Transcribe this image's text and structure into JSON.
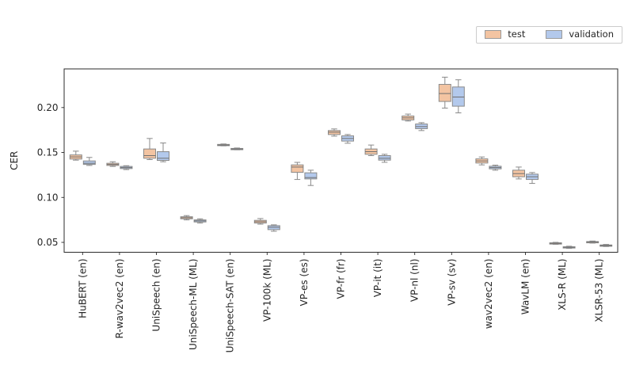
{
  "figure": {
    "background_color": "#ffffff",
    "axis_color": "#2b2b2b",
    "tick_color": "#262626"
  },
  "legend": {
    "items": [
      {
        "label": "test",
        "color": "#f3c4a2"
      },
      {
        "label": "validation",
        "color": "#b3c9ec"
      }
    ]
  },
  "axes": {
    "ylabel": "CER",
    "ytick_labels": [
      "0.05",
      "0.10",
      "0.15",
      "0.20"
    ]
  },
  "chart_data": {
    "type": "boxplot",
    "title": "",
    "xlabel": "",
    "ylabel": "CER",
    "ylim": [
      0.039,
      0.243
    ],
    "yticks": [
      0.05,
      0.1,
      0.15,
      0.2
    ],
    "grid": false,
    "legend_position": "upper right, outside plot",
    "box_values_order": [
      "whisker_low",
      "q1",
      "median",
      "q3",
      "whisker_high"
    ],
    "categories": [
      "HuBERT (en)",
      "R-wav2vec2 (en)",
      "UniSpeech (en)",
      "UniSpeech-ML (ML)",
      "UniSpeech-SAT (en)",
      "VP-100k (ML)",
      "VP-es (es)",
      "VP-fr (fr)",
      "VP-it (it)",
      "VP-nl (nl)",
      "VP-sv (sv)",
      "wav2vec2 (en)",
      "WavLM (en)",
      "XLS-R (ML)",
      "XLSR-53 (ML)"
    ],
    "series": [
      {
        "name": "test",
        "color": "#f3c4a2",
        "edge_color": "#8a8a8a",
        "boxes": [
          [
            0.1415,
            0.1427,
            0.1451,
            0.1473,
            0.1515
          ],
          [
            0.1345,
            0.1356,
            0.1367,
            0.138,
            0.1397
          ],
          [
            0.1421,
            0.1436,
            0.1465,
            0.1539,
            0.1656
          ],
          [
            0.075,
            0.0762,
            0.0774,
            0.0785,
            0.0798
          ],
          [
            0.1574,
            0.1578,
            0.1583,
            0.159,
            0.1595
          ],
          [
            0.0703,
            0.0715,
            0.073,
            0.0745,
            0.0765
          ],
          [
            0.12,
            0.1279,
            0.1338,
            0.1362,
            0.139
          ],
          [
            0.1682,
            0.17,
            0.1726,
            0.1744,
            0.1762
          ],
          [
            0.1465,
            0.148,
            0.1509,
            0.1539,
            0.1583
          ],
          [
            0.185,
            0.1862,
            0.1885,
            0.1906,
            0.1927
          ],
          [
            0.1994,
            0.2068,
            0.2156,
            0.2258,
            0.2338
          ],
          [
            0.1362,
            0.1383,
            0.1406,
            0.1429,
            0.145
          ],
          [
            0.1206,
            0.123,
            0.1265,
            0.1303,
            0.1338
          ],
          [
            0.0478,
            0.0483,
            0.0489,
            0.0495,
            0.05
          ],
          [
            0.0492,
            0.0497,
            0.0503,
            0.0509,
            0.0515
          ]
        ]
      },
      {
        "name": "validation",
        "color": "#b3c9ec",
        "edge_color": "#8a8a8a",
        "boxes": [
          [
            0.1356,
            0.1367,
            0.138,
            0.1406,
            0.1445
          ],
          [
            0.131,
            0.1321,
            0.1332,
            0.1345,
            0.1353
          ],
          [
            0.1397,
            0.1412,
            0.1436,
            0.1509,
            0.1606
          ],
          [
            0.0715,
            0.0727,
            0.0739,
            0.075,
            0.0762
          ],
          [
            0.153,
            0.1534,
            0.1539,
            0.1545,
            0.155
          ],
          [
            0.0624,
            0.0642,
            0.0668,
            0.0686,
            0.0695
          ],
          [
            0.1133,
            0.1206,
            0.1221,
            0.1274,
            0.1303
          ],
          [
            0.1603,
            0.1627,
            0.1656,
            0.1685,
            0.17
          ],
          [
            0.1391,
            0.1415,
            0.1436,
            0.1465,
            0.148
          ],
          [
            0.1744,
            0.1765,
            0.1788,
            0.1817,
            0.1832
          ],
          [
            0.1941,
            0.2015,
            0.2117,
            0.2229,
            0.2309
          ],
          [
            0.1303,
            0.1318,
            0.1332,
            0.1347,
            0.1359
          ],
          [
            0.1156,
            0.12,
            0.123,
            0.1259,
            0.1277
          ],
          [
            0.0433,
            0.0439,
            0.0445,
            0.0451,
            0.0457
          ],
          [
            0.0454,
            0.046,
            0.0465,
            0.0471,
            0.0477
          ]
        ]
      }
    ]
  }
}
